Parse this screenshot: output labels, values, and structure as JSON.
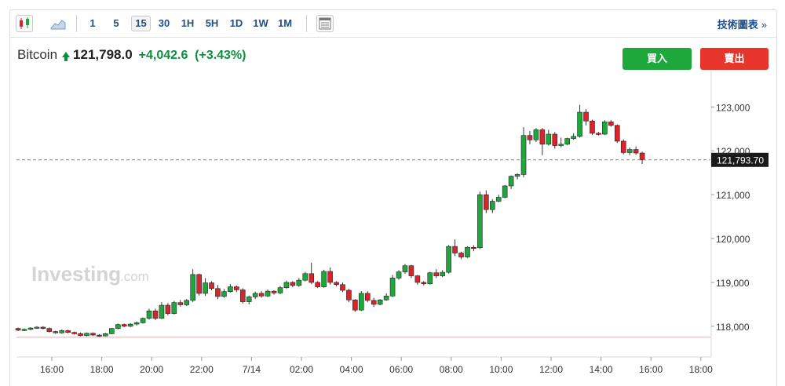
{
  "toolbar": {
    "chart_type_icons": [
      "candlestick-icon",
      "area-chart-icon"
    ],
    "intervals": [
      {
        "label": "1",
        "active": false
      },
      {
        "label": "5",
        "active": false
      },
      {
        "label": "15",
        "active": true
      },
      {
        "label": "30",
        "active": false
      },
      {
        "label": "1H",
        "active": false
      },
      {
        "label": "5H",
        "active": false
      },
      {
        "label": "1D",
        "active": false
      },
      {
        "label": "1W",
        "active": false
      },
      {
        "label": "1M",
        "active": false
      }
    ],
    "table_icon": "table-icon",
    "tech_chart_link": "技術圖表",
    "tech_chart_arrow": "»"
  },
  "quote": {
    "name": "Bitcoin",
    "last": "121,798.0",
    "change": "+4,042.6",
    "change_pct": "(+3.43%)",
    "direction_icon": "arrow-up-icon"
  },
  "actions": {
    "buy_label": "買入",
    "sell_label": "賣出"
  },
  "watermark": {
    "brand": "Investing",
    "suffix": ".com"
  },
  "colors": {
    "up": "#1ea83c",
    "down": "#d6262d",
    "accent": "#1f4e8c",
    "price_label_bg": "#1a1a1a"
  },
  "chart_data": {
    "type": "candlestick",
    "y_ticks": [
      "123,000",
      "122,000",
      "121,000",
      "120,000",
      "119,000",
      "118,000"
    ],
    "y_tick_values": [
      123000,
      122000,
      121000,
      120000,
      119000,
      118000
    ],
    "x_ticks": [
      "16:00",
      "18:00",
      "20:00",
      "22:00",
      "7/14",
      "02:00",
      "04:00",
      "06:00",
      "08:00",
      "10:00",
      "12:00",
      "14:00",
      "16:00",
      "18:00"
    ],
    "ylim": [
      117300,
      123650
    ],
    "current_price_label": "121,793.70",
    "current_price": 121793.7,
    "reference_price": 117750,
    "interval_minutes": 15,
    "first_candle_offset_hours": -1.35,
    "candles": [
      [
        117950,
        117970,
        117890,
        117910
      ],
      [
        117910,
        117950,
        117890,
        117930
      ],
      [
        117930,
        117980,
        117910,
        117960
      ],
      [
        117960,
        118000,
        117940,
        117980
      ],
      [
        117980,
        118000,
        117930,
        117950
      ],
      [
        117950,
        117970,
        117860,
        117880
      ],
      [
        117880,
        117900,
        117830,
        117850
      ],
      [
        117850,
        117930,
        117830,
        117900
      ],
      [
        117900,
        117920,
        117840,
        117860
      ],
      [
        117860,
        117880,
        117810,
        117830
      ],
      [
        117830,
        117860,
        117770,
        117790
      ],
      [
        117790,
        117860,
        117770,
        117840
      ],
      [
        117840,
        117860,
        117780,
        117800
      ],
      [
        117800,
        117820,
        117750,
        117780
      ],
      [
        117780,
        117850,
        117770,
        117830
      ],
      [
        117830,
        117960,
        117820,
        117950
      ],
      [
        117950,
        118060,
        117930,
        118040
      ],
      [
        118040,
        118060,
        117980,
        118000
      ],
      [
        118000,
        118070,
        117980,
        118050
      ],
      [
        118050,
        118110,
        118020,
        118080
      ],
      [
        118080,
        118200,
        118060,
        118180
      ],
      [
        118180,
        118400,
        118150,
        118350
      ],
      [
        118350,
        118400,
        118140,
        118180
      ],
      [
        118180,
        118550,
        118170,
        118480
      ],
      [
        118480,
        118530,
        118250,
        118290
      ],
      [
        118290,
        118580,
        118270,
        118540
      ],
      [
        118540,
        118600,
        118450,
        118490
      ],
      [
        118490,
        118620,
        118460,
        118590
      ],
      [
        118590,
        119300,
        118550,
        119180
      ],
      [
        119180,
        119200,
        118700,
        118750
      ],
      [
        118750,
        119100,
        118690,
        118990
      ],
      [
        118990,
        119030,
        118820,
        118860
      ],
      [
        118860,
        118940,
        118620,
        118680
      ],
      [
        118680,
        118850,
        118650,
        118790
      ],
      [
        118790,
        118960,
        118770,
        118900
      ],
      [
        118900,
        118930,
        118780,
        118830
      ],
      [
        118830,
        118870,
        118520,
        118560
      ],
      [
        118560,
        118700,
        118500,
        118670
      ],
      [
        118670,
        118790,
        118620,
        118750
      ],
      [
        118750,
        118800,
        118650,
        118690
      ],
      [
        118690,
        118840,
        118670,
        118800
      ],
      [
        118800,
        118820,
        118720,
        118760
      ],
      [
        118760,
        118920,
        118730,
        118880
      ],
      [
        118880,
        119040,
        118850,
        119000
      ],
      [
        119000,
        119030,
        118890,
        118930
      ],
      [
        118930,
        119100,
        118900,
        119050
      ],
      [
        119050,
        119240,
        119020,
        119200
      ],
      [
        119200,
        119450,
        118960,
        119000
      ],
      [
        119000,
        119030,
        118870,
        118900
      ],
      [
        118900,
        119290,
        118880,
        119250
      ],
      [
        119250,
        119340,
        118950,
        119000
      ],
      [
        119000,
        119030,
        118910,
        118950
      ],
      [
        118950,
        119000,
        118780,
        118820
      ],
      [
        118820,
        118860,
        118550,
        118600
      ],
      [
        118600,
        118620,
        118330,
        118370
      ],
      [
        118370,
        118800,
        118350,
        118750
      ],
      [
        118750,
        118800,
        118550,
        118590
      ],
      [
        118590,
        118650,
        118440,
        118500
      ],
      [
        118500,
        118620,
        118480,
        118600
      ],
      [
        118600,
        118750,
        118580,
        118690
      ],
      [
        118690,
        119170,
        118670,
        119100
      ],
      [
        119100,
        119280,
        119060,
        119240
      ],
      [
        119240,
        119420,
        119200,
        119380
      ],
      [
        119380,
        119400,
        119100,
        119150
      ],
      [
        119150,
        119170,
        118950,
        119000
      ],
      [
        119000,
        119030,
        118930,
        118970
      ],
      [
        118970,
        119240,
        118950,
        119220
      ],
      [
        119220,
        119300,
        119100,
        119150
      ],
      [
        119150,
        119280,
        119120,
        119230
      ],
      [
        119230,
        119850,
        119200,
        119820
      ],
      [
        119820,
        119980,
        119600,
        119670
      ],
      [
        119670,
        119700,
        119530,
        119580
      ],
      [
        119580,
        119820,
        119560,
        119800
      ],
      [
        119800,
        119850,
        119710,
        119790
      ],
      [
        119790,
        121070,
        119760,
        121000
      ],
      [
        121000,
        121100,
        120580,
        120660
      ],
      [
        120660,
        120900,
        120580,
        120850
      ],
      [
        120850,
        121000,
        120830,
        120940
      ],
      [
        120940,
        121220,
        120920,
        121200
      ],
      [
        121200,
        121440,
        121130,
        121420
      ],
      [
        121420,
        121490,
        121350,
        121460
      ],
      [
        121460,
        122540,
        121400,
        122350
      ],
      [
        122350,
        122450,
        122150,
        122250
      ],
      [
        122250,
        122520,
        122200,
        122480
      ],
      [
        122480,
        122520,
        121900,
        122150
      ],
      [
        122150,
        122480,
        122120,
        122380
      ],
      [
        122380,
        122430,
        122050,
        122120
      ],
      [
        122120,
        122300,
        122080,
        122150
      ],
      [
        122150,
        122300,
        122130,
        122280
      ],
      [
        122280,
        122400,
        122250,
        122330
      ],
      [
        122330,
        123050,
        122300,
        122880
      ],
      [
        122880,
        122950,
        122580,
        122680
      ],
      [
        122680,
        122710,
        122360,
        122400
      ],
      [
        122400,
        122430,
        122350,
        122380
      ],
      [
        122380,
        122700,
        122360,
        122660
      ],
      [
        122660,
        122700,
        122550,
        122580
      ],
      [
        122580,
        122600,
        122180,
        122220
      ],
      [
        122220,
        122260,
        121920,
        121960
      ],
      [
        121960,
        122080,
        121900,
        122030
      ],
      [
        122030,
        122100,
        121910,
        121950
      ],
      [
        121950,
        121980,
        121700,
        121793.7
      ]
    ]
  }
}
